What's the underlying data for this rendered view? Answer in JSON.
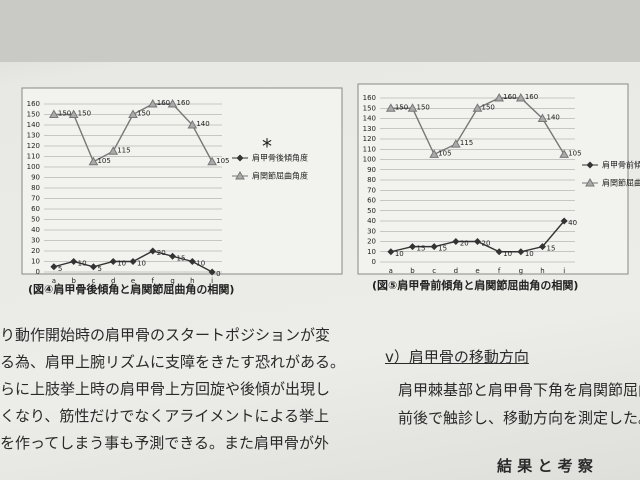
{
  "chart_data": [
    {
      "type": "line",
      "categories": [
        "a",
        "b",
        "c",
        "d",
        "e",
        "f",
        "g",
        "h",
        "i"
      ],
      "ylim": [
        0,
        160
      ],
      "yticks": [
        0,
        10,
        20,
        30,
        40,
        50,
        60,
        70,
        80,
        90,
        100,
        110,
        120,
        130,
        140,
        150,
        160
      ],
      "grid": true,
      "series": [
        {
          "name": "肩甲骨後傾角度",
          "color": "#333333",
          "marker": "diamond",
          "values": [
            5,
            10,
            5,
            10,
            10,
            20,
            15,
            10,
            0
          ]
        },
        {
          "name": "肩関節屈曲角度",
          "color": "#777777",
          "marker": "triangle",
          "values": [
            150,
            150,
            105,
            115,
            150,
            160,
            160,
            140,
            105
          ]
        }
      ]
    },
    {
      "type": "line",
      "categories": [
        "a",
        "b",
        "c",
        "d",
        "e",
        "f",
        "g",
        "h",
        "i"
      ],
      "ylim": [
        0,
        160
      ],
      "yticks": [
        0,
        10,
        20,
        30,
        40,
        50,
        60,
        70,
        80,
        90,
        100,
        110,
        120,
        130,
        140,
        150,
        160
      ],
      "grid": true,
      "series": [
        {
          "name": "肩甲骨前傾角度",
          "color": "#333333",
          "marker": "diamond",
          "values": [
            10,
            15,
            15,
            20,
            20,
            10,
            10,
            15,
            40
          ]
        },
        {
          "name": "肩関節屈曲角度",
          "color": "#777777",
          "marker": "triangle",
          "values": [
            150,
            150,
            105,
            115,
            150,
            160,
            160,
            140,
            105
          ]
        }
      ]
    }
  ],
  "captions": [
    "(図④肩甲骨後傾角と肩関節屈曲角の相関)",
    "(図⑤肩甲骨前傾角と肩関節屈曲角の相関)"
  ],
  "asterisk": "*",
  "left_text": [
    "り動作開始時の肩甲骨のスタートポジションが変",
    "る為、肩甲上腕リズムに支障をきたす恐れがある。",
    "らに上肢挙上時の肩甲骨上方回旋や後傾が出現し",
    "くなり、筋性だけでなくアライメントによる挙上",
    "を作ってしまう事も予測できる。また肩甲骨が外"
  ],
  "section_heading": "v）肩甲骨の移動方向",
  "right_text": [
    "肩甲棘基部と肩甲骨下角を肩関節屈曲角",
    "前後で触診し、移動方向を測定した。"
  ],
  "results_heading": "結 果 と 考 察"
}
